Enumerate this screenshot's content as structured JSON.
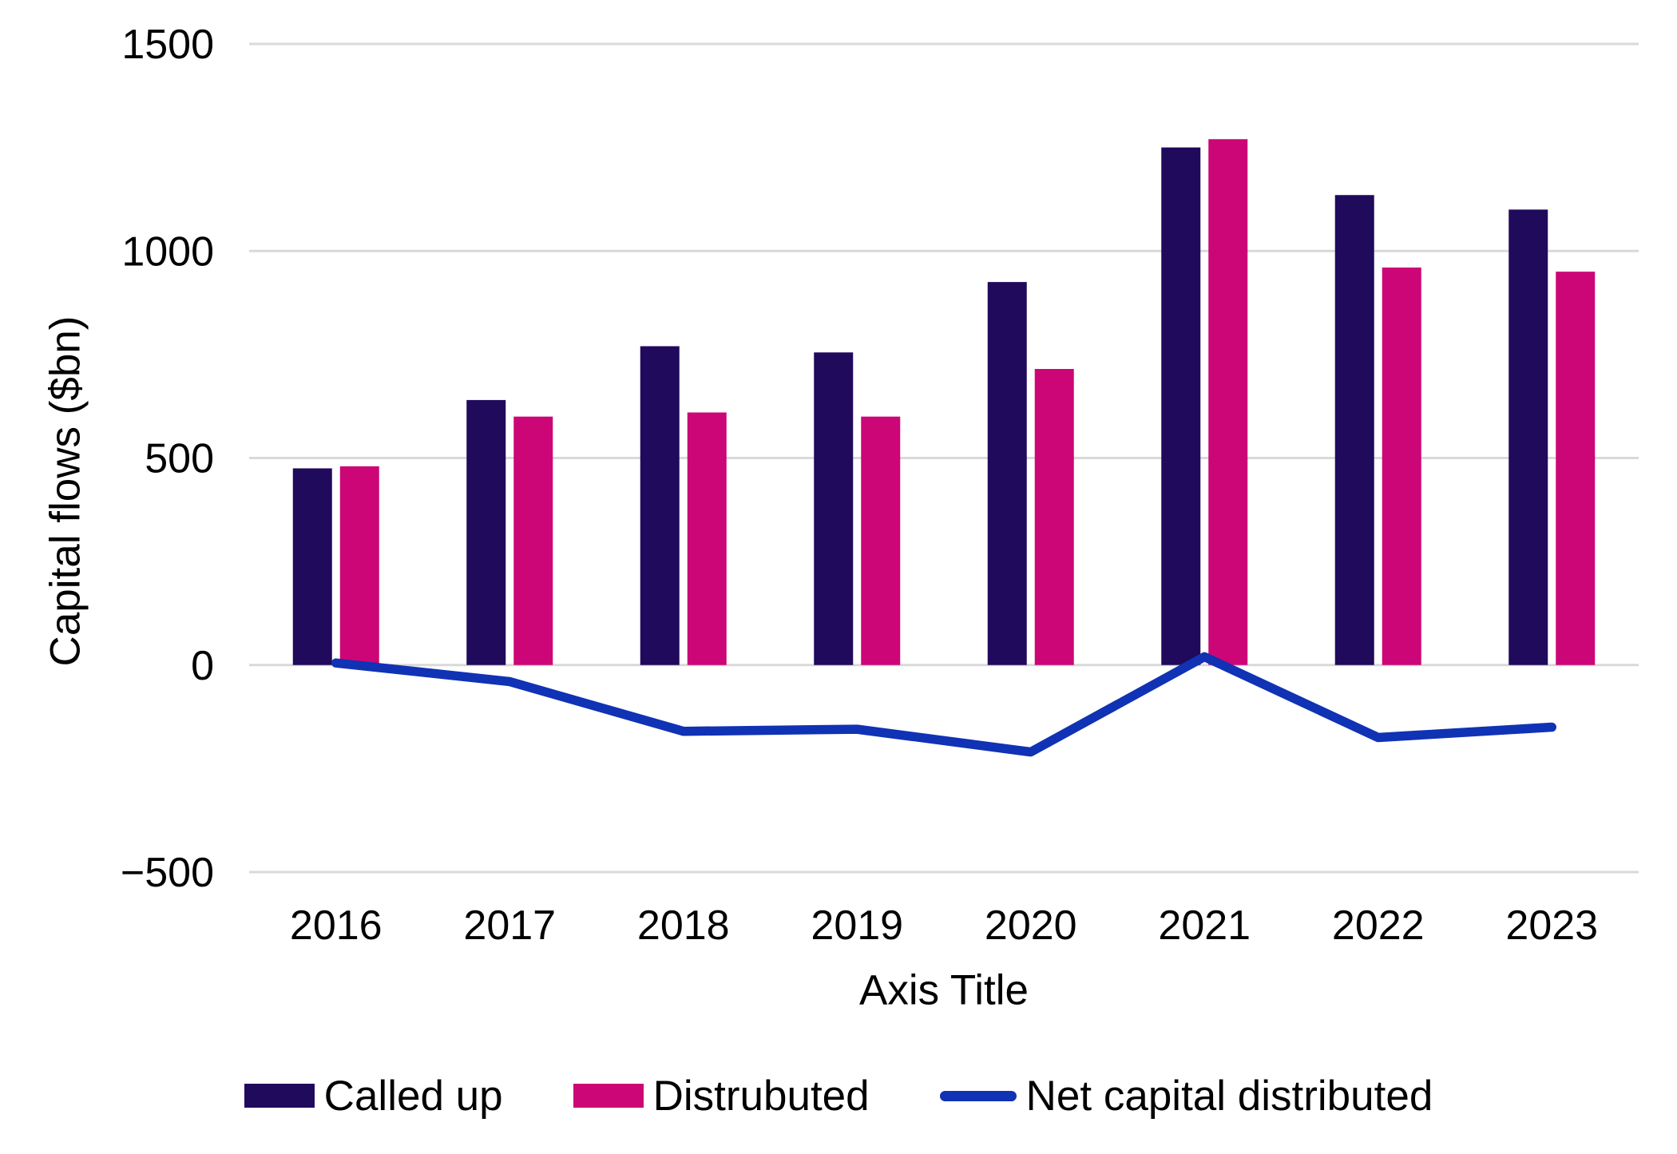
{
  "chart_data": {
    "type": "combo",
    "title": "",
    "xlabel": "Axis Title",
    "ylabel": "Capital flows ($bn)",
    "categories": [
      "2016",
      "2017",
      "2018",
      "2019",
      "2020",
      "2021",
      "2022",
      "2023"
    ],
    "series": [
      {
        "name": "Called up",
        "type": "bar",
        "color": "#200A5C",
        "values": [
          475,
          640,
          770,
          755,
          925,
          1250,
          1135,
          1100
        ]
      },
      {
        "name": "Distrubuted",
        "type": "bar",
        "color": "#CC0677",
        "values": [
          480,
          600,
          610,
          600,
          715,
          1270,
          960,
          950
        ]
      },
      {
        "name": "Net capital distributed",
        "type": "line",
        "color": "#1032B4",
        "values": [
          5,
          -40,
          -160,
          -155,
          -210,
          20,
          -175,
          -150
        ]
      }
    ],
    "ylim": [
      -500,
      1500
    ],
    "yticks": [
      1500,
      1000,
      500,
      0,
      -500
    ],
    "ytick_labels": [
      "1500",
      "1000",
      "500",
      "0",
      "−500"
    ],
    "grid": "horizontal",
    "gridline_color": "#D9D9D9",
    "text_color": "#000000",
    "legend_position": "bottom"
  }
}
